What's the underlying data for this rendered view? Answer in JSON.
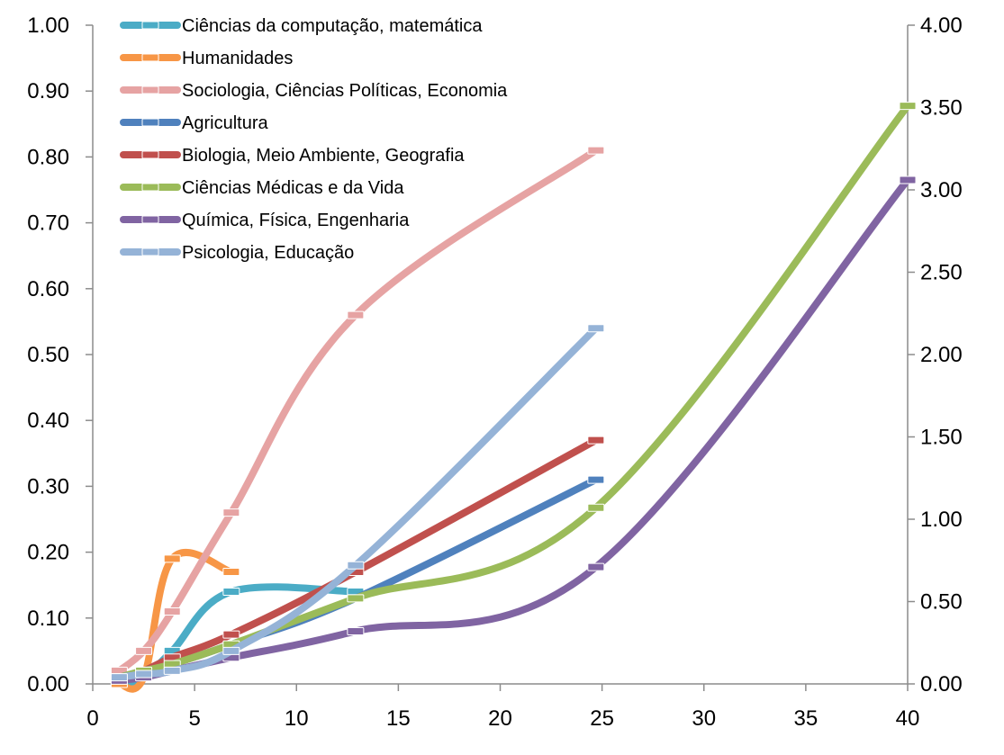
{
  "chart_data": {
    "type": "line",
    "title": "",
    "xlabel": "",
    "ylabel": "",
    "xlim": [
      0,
      40
    ],
    "ylim_left": [
      0,
      1.0
    ],
    "ylim_right": [
      0,
      4.0
    ],
    "x_ticks": [
      "0",
      "5",
      "10",
      "15",
      "20",
      "25",
      "30",
      "35",
      "40"
    ],
    "y_left_ticks": [
      "0.00",
      "0.10",
      "0.20",
      "0.30",
      "0.40",
      "0.50",
      "0.60",
      "0.70",
      "0.80",
      "0.90",
      "1.00"
    ],
    "y_right_ticks": [
      "0.00",
      "0.50",
      "1.00",
      "1.50",
      "2.00",
      "2.50",
      "3.00",
      "3.50",
      "4.00"
    ],
    "grid": false,
    "legend_position": "top-left",
    "series": [
      {
        "name": "Ciências da computação, matemática",
        "color": "#4bacc6",
        "axis": "left",
        "points": [
          [
            1.3,
            0.0
          ],
          [
            2.5,
            0.01
          ],
          [
            3.9,
            0.05
          ],
          [
            6.8,
            0.14
          ],
          [
            12.9,
            0.14
          ]
        ]
      },
      {
        "name": "Humanidades",
        "color": "#f79646",
        "axis": "left",
        "points": [
          [
            1.3,
            0.0
          ],
          [
            2.5,
            0.01
          ],
          [
            3.9,
            0.19
          ],
          [
            6.8,
            0.17
          ]
        ]
      },
      {
        "name": "Sociologia, Ciências Políticas, Economia",
        "color": "#e6a3a3",
        "axis": "left",
        "points": [
          [
            1.3,
            0.02
          ],
          [
            2.5,
            0.05
          ],
          [
            3.9,
            0.11
          ],
          [
            6.8,
            0.26
          ],
          [
            12.9,
            0.56
          ],
          [
            24.7,
            0.81
          ]
        ]
      },
      {
        "name": "Agricultura",
        "color": "#4f81bd",
        "axis": "left",
        "points": [
          [
            1.3,
            0.01
          ],
          [
            2.5,
            0.02
          ],
          [
            3.9,
            0.03
          ],
          [
            6.8,
            0.06
          ],
          [
            12.9,
            0.13
          ],
          [
            24.7,
            0.31
          ]
        ]
      },
      {
        "name": "Biologia, Meio Ambiente, Geografia",
        "color": "#c0504d",
        "axis": "left",
        "points": [
          [
            1.3,
            0.01
          ],
          [
            2.5,
            0.02
          ],
          [
            3.9,
            0.04
          ],
          [
            6.8,
            0.075
          ],
          [
            12.9,
            0.17
          ],
          [
            24.7,
            0.37
          ]
        ]
      },
      {
        "name": "Ciências Médicas e da Vida",
        "color": "#9bbb59",
        "axis": "right",
        "points": [
          [
            1.3,
            0.04
          ],
          [
            2.5,
            0.08
          ],
          [
            3.9,
            0.12
          ],
          [
            6.8,
            0.24
          ],
          [
            12.9,
            0.52
          ],
          [
            24.7,
            1.07
          ],
          [
            40,
            3.51
          ]
        ]
      },
      {
        "name": "Química, Física, Engenharia",
        "color": "#8064a2",
        "axis": "right",
        "points": [
          [
            1.3,
            0.02
          ],
          [
            2.5,
            0.04
          ],
          [
            3.9,
            0.08
          ],
          [
            6.8,
            0.16
          ],
          [
            12.9,
            0.32
          ],
          [
            24.7,
            0.71
          ],
          [
            40,
            3.06
          ]
        ]
      },
      {
        "name": "Psicologia, Educação",
        "color": "#95b3d7",
        "axis": "left",
        "points": [
          [
            1.3,
            0.01
          ],
          [
            2.5,
            0.015
          ],
          [
            3.9,
            0.02
          ],
          [
            6.8,
            0.05
          ],
          [
            12.9,
            0.18
          ],
          [
            24.7,
            0.54
          ]
        ]
      }
    ]
  }
}
